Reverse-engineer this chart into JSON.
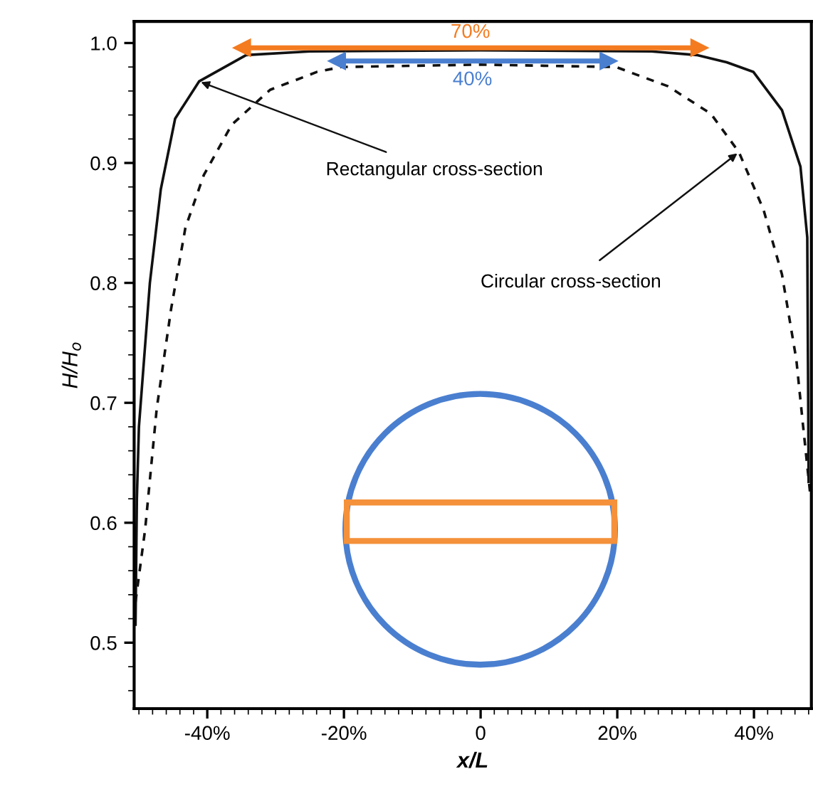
{
  "chart_data": {
    "type": "line",
    "xlabel": "x/L",
    "ylabel": "H/H$_{o}$",
    "xlim": [
      -50.7,
      48.4
    ],
    "ylim": [
      0.445,
      1.018
    ],
    "xticks": [
      {
        "value": -40,
        "label": "-40%"
      },
      {
        "value": -20,
        "label": "-20%"
      },
      0,
      {
        "value": 20,
        "label": "20%"
      },
      {
        "value": 40,
        "label": "40%"
      }
    ],
    "yticks": [
      {
        "value": 0.5,
        "label": "0.5"
      },
      {
        "value": 0.6,
        "label": "0.6"
      },
      {
        "value": 0.7,
        "label": "0.7"
      },
      {
        "value": 0.8,
        "label": "0.8"
      },
      {
        "value": 0.9,
        "label": "0.9"
      },
      {
        "value": 1.0,
        "label": "1.0"
      }
    ],
    "grid": false,
    "series": [
      {
        "color": "#111111",
        "line_style": "solid",
        "x": [
          -50.5,
          -50.3,
          -50.0,
          -48.4,
          -46.8,
          -44.7,
          -41.2,
          -34.3,
          -25,
          0,
          25,
          31.6,
          36,
          39.9,
          44.1,
          46.8,
          47.8,
          48.0
        ],
        "values": [
          0.514,
          0.62,
          0.68,
          0.8,
          0.878,
          0.937,
          0.968,
          0.99,
          0.993,
          0.994,
          0.993,
          0.99,
          0.984,
          0.976,
          0.944,
          0.897,
          0.838,
          0.633
        ]
      },
      {
        "color": "#111111",
        "line_style": "dashed",
        "x": [
          -50.5,
          -49.1,
          -47.4,
          -45.3,
          -43.2,
          -40.5,
          -36.4,
          -30.8,
          -23.9,
          -20.4,
          0,
          19.8,
          27.4,
          33.7,
          37.8,
          41.4,
          44.1,
          46.2,
          47.2,
          48.3
        ],
        "values": [
          0.534,
          0.594,
          0.695,
          0.778,
          0.846,
          0.89,
          0.932,
          0.961,
          0.976,
          0.98,
          0.982,
          0.98,
          0.964,
          0.941,
          0.909,
          0.861,
          0.807,
          0.736,
          0.68,
          0.62
        ]
      },
      {
        "color": "#f47b20",
        "line_style": "solid",
        "marker": "triangle",
        "x": [
          -34.9,
          32.0
        ],
        "values": [
          0.996,
          0.996
        ]
      },
      {
        "color": "#4a7fd0",
        "line_style": "solid",
        "marker": "triangle",
        "x": [
          -21.0,
          18.7
        ],
        "values": [
          0.985,
          0.985
        ]
      }
    ],
    "annotations": [
      {
        "text": "Rectangular cross-section",
        "x": -41.2,
        "y": 0.968
      },
      {
        "text": "Circular cross-section",
        "x": 37.8,
        "y": 0.909
      },
      {
        "text": "70%",
        "x": -1.5,
        "y": 0.996
      },
      {
        "text": "40%",
        "x": -1.2,
        "y": 0.985
      }
    ]
  }
}
